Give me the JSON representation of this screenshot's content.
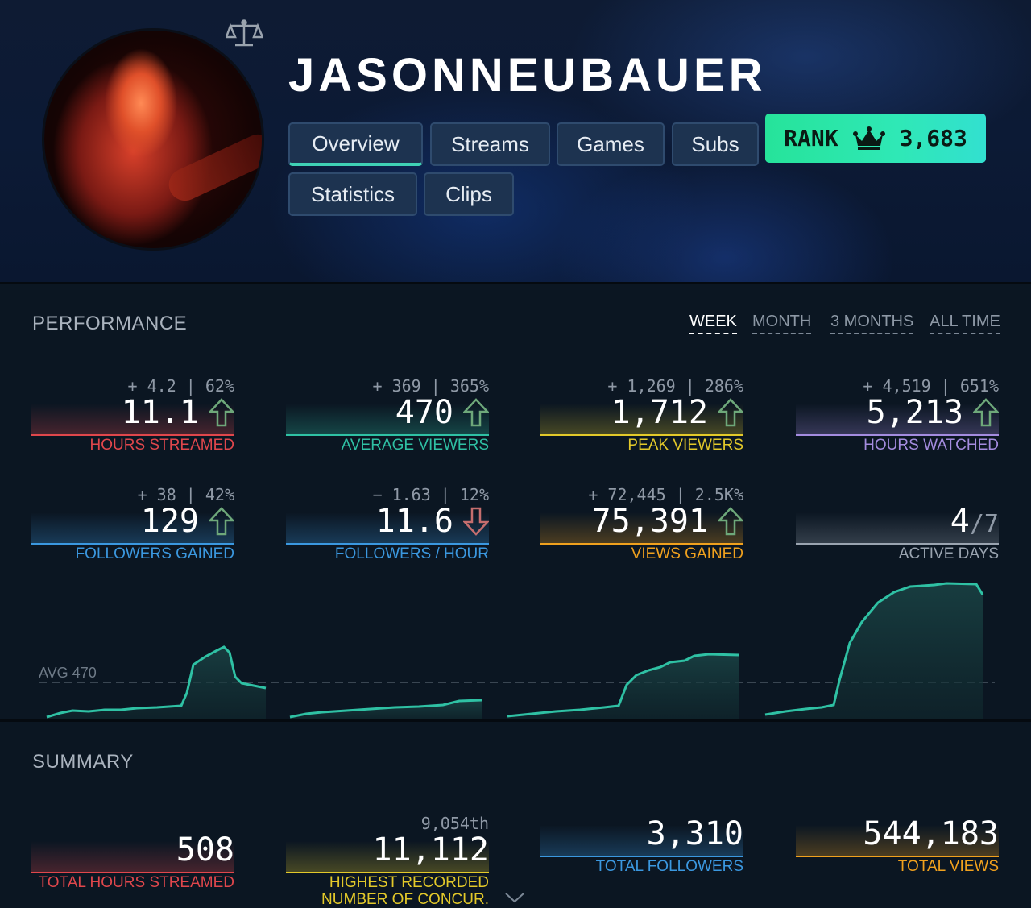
{
  "channel": {
    "name": "JASONNEUBAUER"
  },
  "tabs": [
    {
      "label": "Overview"
    },
    {
      "label": "Streams"
    },
    {
      "label": "Games"
    },
    {
      "label": "Subs"
    },
    {
      "label": "Statistics"
    },
    {
      "label": "Clips"
    }
  ],
  "rank": {
    "label": "RANK",
    "value": "3,683"
  },
  "performance": {
    "title": "PERFORMANCE",
    "periods": [
      "WEEK",
      "MONTH",
      "3 MONTHS",
      "ALL TIME"
    ],
    "active_period": "WEEK",
    "stats": [
      {
        "delta": "+ 4.2 | 62%",
        "value": "11.1",
        "trend": "up",
        "label": "HOURS STREAMED",
        "color": "#e0474c"
      },
      {
        "delta": "+ 369 | 365%",
        "value": "470",
        "trend": "up",
        "label": "AVERAGE VIEWERS",
        "color": "#2fc1a4"
      },
      {
        "delta": "+ 1,269 | 286%",
        "value": "1,712",
        "trend": "up",
        "label": "PEAK VIEWERS",
        "color": "#e3c92a"
      },
      {
        "delta": "+ 4,519 | 651%",
        "value": "5,213",
        "trend": "up",
        "label": "HOURS WATCHED",
        "color": "#a48cdf"
      },
      {
        "delta": "+ 38 | 42%",
        "value": "129",
        "trend": "up",
        "label": "FOLLOWERS GAINED",
        "color": "#3b98e0"
      },
      {
        "delta": "− 1.63 | 12%",
        "value": "11.6",
        "trend": "down",
        "label": "FOLLOWERS / HOUR",
        "color": "#3b98e0"
      },
      {
        "delta": "+ 72,445 | 2.5K%",
        "value": "75,391",
        "trend": "up",
        "label": "VIEWS GAINED",
        "color": "#f0a11e"
      },
      {
        "delta": "",
        "value": "4",
        "value_suffix": "/7",
        "trend": "none",
        "label": "ACTIVE DAYS",
        "color": "#9aa4b0"
      }
    ]
  },
  "chart": {
    "avg_label": "AVG 470"
  },
  "summary": {
    "title": "SUMMARY",
    "stats": [
      {
        "value": "508",
        "label": "TOTAL HOURS STREAMED",
        "color": "#e0474c"
      },
      {
        "rank": "9,054th",
        "value": "11,112",
        "label_line1": "HIGHEST RECORDED",
        "label_line2": "NUMBER OF CONCUR.",
        "color": "#e3c92a"
      },
      {
        "value": "3,310",
        "label": "TOTAL FOLLOWERS",
        "color": "#3b98e0"
      },
      {
        "value": "544,183",
        "label": "TOTAL VIEWS",
        "color": "#f0a11e"
      }
    ]
  },
  "icons": {
    "compare": "scale-icon",
    "crown": "crown-icon",
    "up": "arrow-up-icon",
    "down": "arrow-down-icon",
    "expand": "chevron-down-icon"
  }
}
